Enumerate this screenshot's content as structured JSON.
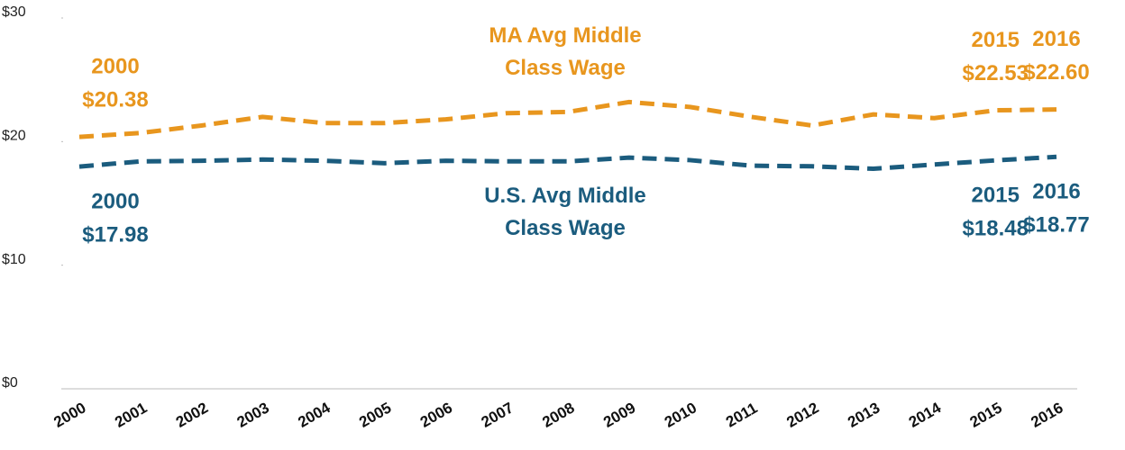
{
  "chart_data": {
    "type": "line",
    "categories": [
      "2000",
      "2001",
      "2002",
      "2003",
      "2004",
      "2005",
      "2006",
      "2007",
      "2008",
      "2009",
      "2010",
      "2011",
      "2012",
      "2013",
      "2014",
      "2015",
      "2016"
    ],
    "series": [
      {
        "name": "MA Avg Middle Class Wage",
        "color": "#e8961e",
        "values": [
          20.38,
          20.7,
          21.3,
          22.0,
          21.5,
          21.5,
          21.8,
          22.3,
          22.4,
          23.2,
          22.8,
          22.0,
          21.3,
          22.2,
          21.9,
          22.53,
          22.6
        ],
        "value_labels": [
          "$20.38",
          null,
          null,
          null,
          null,
          null,
          null,
          null,
          null,
          null,
          null,
          null,
          null,
          null,
          null,
          "$22.53",
          "$22.60"
        ]
      },
      {
        "name": "U.S. Avg Middle Class Wage",
        "color": "#1b5c7e",
        "values": [
          17.98,
          18.4,
          18.45,
          18.55,
          18.45,
          18.25,
          18.45,
          18.4,
          18.4,
          18.7,
          18.5,
          18.05,
          18.0,
          17.8,
          18.15,
          18.48,
          18.77
        ],
        "value_labels": [
          "$17.98",
          null,
          null,
          null,
          null,
          null,
          null,
          null,
          null,
          null,
          null,
          null,
          null,
          null,
          null,
          "$18.48",
          "$18.77"
        ]
      }
    ],
    "ylim": [
      0,
      30
    ],
    "yticks": [
      {
        "value": 0,
        "label": "$0"
      },
      {
        "value": 10,
        "label": "$10"
      },
      {
        "value": 20,
        "label": "$20"
      },
      {
        "value": 30,
        "label": "$30"
      }
    ],
    "grid": false
  }
}
